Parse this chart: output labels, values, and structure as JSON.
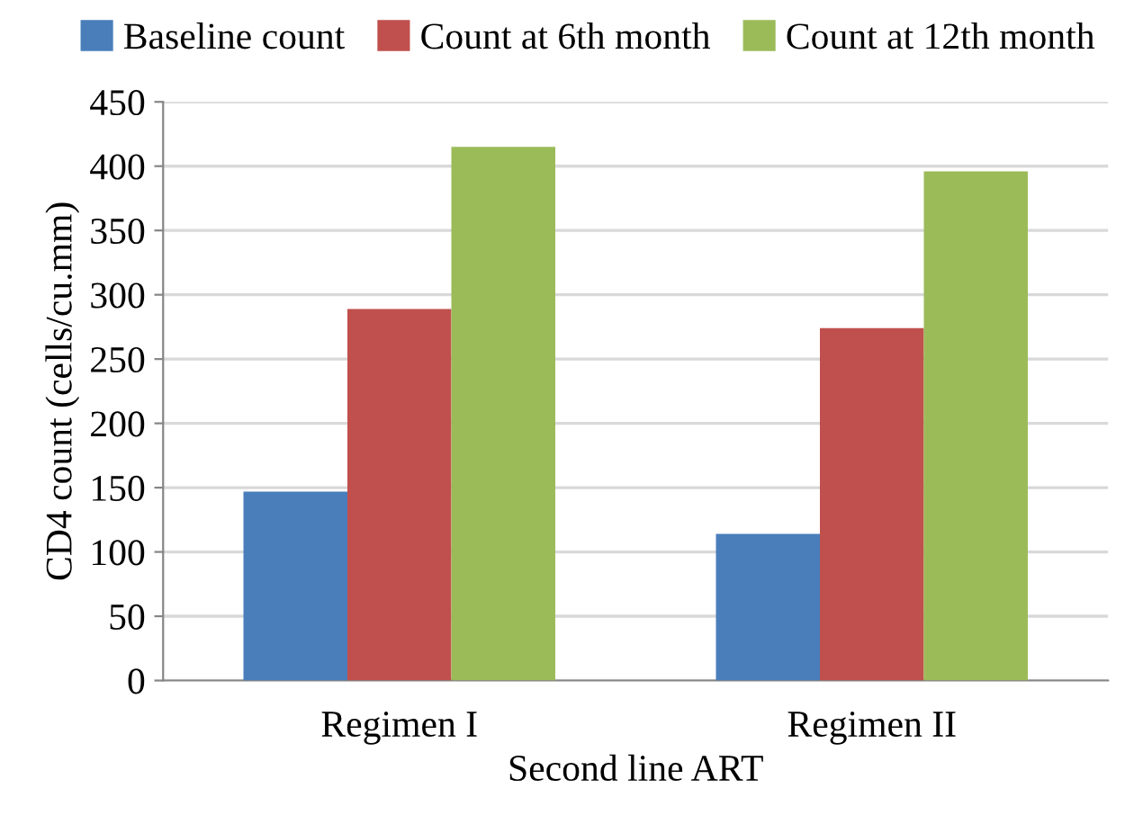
{
  "chart_data": {
    "type": "bar",
    "xlabel": "Second line ART",
    "ylabel": "CD4 count (cells/cu.mm)",
    "categories": [
      "Regimen I",
      "Regimen II"
    ],
    "series": [
      {
        "name": "Baseline count",
        "color": "#4a7ebb",
        "values": [
          147,
          114
        ]
      },
      {
        "name": "Count at 6th month",
        "color": "#c0504d",
        "values": [
          289,
          274
        ]
      },
      {
        "name": "Count at 12th month",
        "color": "#9bbb59",
        "values": [
          415,
          396
        ]
      }
    ],
    "ylim": [
      0,
      450
    ],
    "yticks": [
      0,
      50,
      100,
      150,
      200,
      250,
      300,
      350,
      400,
      450
    ],
    "grid": "y",
    "legend": "top"
  }
}
